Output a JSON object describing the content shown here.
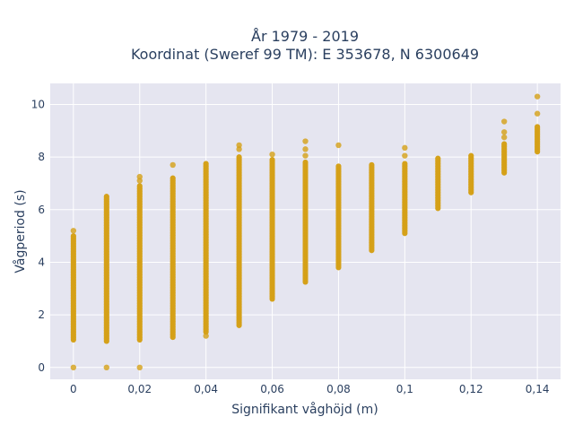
{
  "chart_data": {
    "type": "scatter",
    "title_line1": "År 1979 - 2019",
    "title_line2": "Koordinat (Sweref 99 TM): E 353678, N 6300649",
    "xlabel": "Signifikant våghöjd (m)",
    "ylabel": "Vågperiod (s)",
    "xlim": [
      -0.007,
      0.147
    ],
    "ylim": [
      -0.45,
      10.8
    ],
    "x_ticks": [
      0,
      0.02,
      0.04,
      0.06,
      0.08,
      0.1,
      0.12,
      0.14
    ],
    "x_tick_labels": [
      "0",
      "0,02",
      "0,04",
      "0,06",
      "0,08",
      "0,1",
      "0,12",
      "0,14"
    ],
    "y_ticks": [
      0,
      2,
      4,
      6,
      8,
      10
    ],
    "y_tick_labels": [
      "0",
      "2",
      "4",
      "6",
      "8",
      "10"
    ],
    "grid": true,
    "colors": {
      "marker": "#d4a017",
      "plot_bg": "#e5e5f0",
      "grid": "#ffffff",
      "text": "#2a3f5f"
    },
    "series": [
      {
        "columns": [
          {
            "x": 0,
            "y_min": 1.05,
            "y_max": 5.0,
            "extra_y": [
              0,
              5.2
            ]
          },
          {
            "x": 0.01,
            "y_min": 1.0,
            "y_max": 6.5,
            "extra_y": [
              0
            ]
          },
          {
            "x": 0.02,
            "y_min": 1.05,
            "y_max": 6.9,
            "extra_y": [
              0,
              7.1,
              7.25
            ]
          },
          {
            "x": 0.03,
            "y_min": 1.15,
            "y_max": 7.2,
            "extra_y": [
              7.7
            ]
          },
          {
            "x": 0.04,
            "y_min": 1.35,
            "y_max": 7.75,
            "extra_y": [
              1.2
            ]
          },
          {
            "x": 0.05,
            "y_min": 1.6,
            "y_max": 8.0,
            "extra_y": [
              8.3,
              8.45
            ]
          },
          {
            "x": 0.06,
            "y_min": 2.6,
            "y_max": 7.9,
            "extra_y": [
              8.1
            ]
          },
          {
            "x": 0.07,
            "y_min": 3.25,
            "y_max": 7.8,
            "extra_y": [
              8.05,
              8.3,
              8.6
            ]
          },
          {
            "x": 0.08,
            "y_min": 3.8,
            "y_max": 7.65,
            "extra_y": [
              8.45
            ]
          },
          {
            "x": 0.09,
            "y_min": 4.45,
            "y_max": 7.7,
            "extra_y": []
          },
          {
            "x": 0.1,
            "y_min": 5.1,
            "y_max": 7.75,
            "extra_y": [
              8.05,
              8.35
            ]
          },
          {
            "x": 0.11,
            "y_min": 6.05,
            "y_max": 7.95,
            "extra_y": []
          },
          {
            "x": 0.12,
            "y_min": 6.65,
            "y_max": 8.05,
            "extra_y": []
          },
          {
            "x": 0.13,
            "y_min": 7.4,
            "y_max": 8.5,
            "extra_y": [
              8.75,
              8.95,
              9.35
            ]
          },
          {
            "x": 0.14,
            "y_min": 8.2,
            "y_max": 9.15,
            "extra_y": [
              9.65,
              10.3
            ]
          }
        ]
      }
    ]
  }
}
